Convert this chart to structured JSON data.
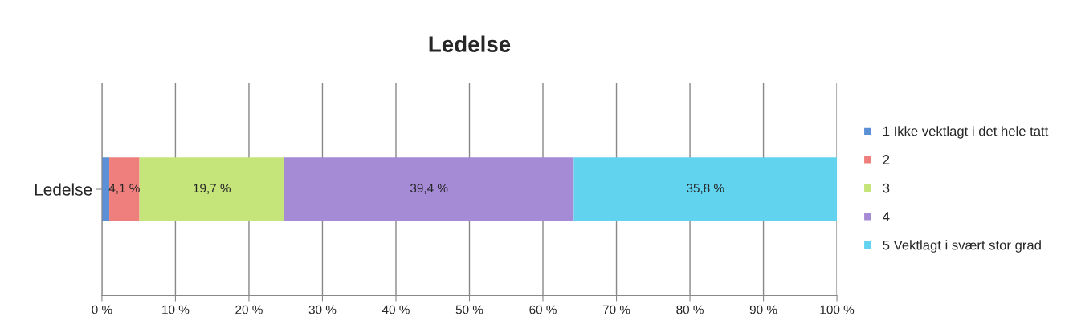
{
  "chart_data": {
    "type": "bar",
    "title": "Ledelse",
    "orientation": "horizontal",
    "stacked": true,
    "categories": [
      "Ledelse"
    ],
    "series": [
      {
        "name": "1 Ikke vektlagt i det hele tatt",
        "color": "#5b8fd6",
        "values": [
          1.0
        ],
        "value_labels": [
          null
        ]
      },
      {
        "name": "2",
        "color": "#ee7f7c",
        "values": [
          4.1
        ],
        "value_labels": [
          "4,1 %"
        ]
      },
      {
        "name": "3",
        "color": "#c5e47a",
        "values": [
          19.7
        ],
        "value_labels": [
          "19,7 %"
        ]
      },
      {
        "name": "4",
        "color": "#a58ad6",
        "values": [
          39.4
        ],
        "value_labels": [
          "39,4 %"
        ]
      },
      {
        "name": "5 Vektlagt i svært stor grad",
        "color": "#62d3ee",
        "values": [
          35.8
        ],
        "value_labels": [
          "35,8 %"
        ]
      }
    ],
    "xlim": [
      0,
      100
    ],
    "xticks": [
      {
        "value": 0,
        "label": "0 %"
      },
      {
        "value": 10,
        "label": "10 %"
      },
      {
        "value": 20,
        "label": "20 %"
      },
      {
        "value": 30,
        "label": "30 %"
      },
      {
        "value": 40,
        "label": "40 %"
      },
      {
        "value": 50,
        "label": "50 %"
      },
      {
        "value": 60,
        "label": "60 %"
      },
      {
        "value": 70,
        "label": "70 %"
      },
      {
        "value": 80,
        "label": "80 %"
      },
      {
        "value": 90,
        "label": "90 %"
      },
      {
        "value": 100,
        "label": "100 %"
      }
    ],
    "grid": "x",
    "legend": "right"
  }
}
